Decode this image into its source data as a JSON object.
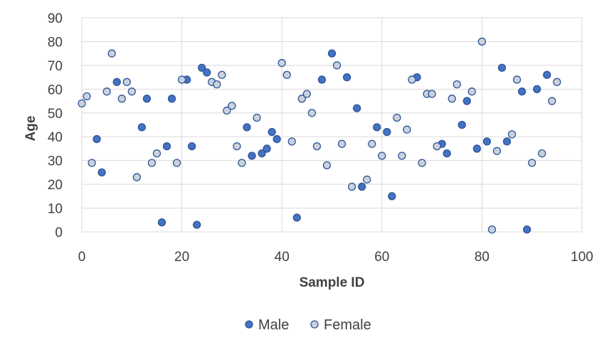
{
  "chart_data": {
    "type": "scatter",
    "title": "",
    "xlabel": "Sample ID",
    "ylabel": "Age",
    "xlim": [
      0,
      100
    ],
    "ylim": [
      0,
      90
    ],
    "x_ticks": [
      "0",
      "20",
      "40",
      "60",
      "80",
      "100"
    ],
    "y_ticks": [
      "0",
      "10",
      "20",
      "30",
      "40",
      "50",
      "60",
      "70",
      "80",
      "90"
    ],
    "grid": true,
    "legend_position": "bottom",
    "colors": {
      "male_fill": "#4472C4",
      "male_stroke": "#2F5597",
      "female_fill": "#C9D2DE",
      "female_stroke": "#2F5597",
      "gridline": "#D9D9D9",
      "text": "#404040"
    },
    "series": [
      {
        "name": "Male",
        "points": [
          [
            3,
            39
          ],
          [
            4,
            25
          ],
          [
            7,
            63
          ],
          [
            12,
            44
          ],
          [
            13,
            56
          ],
          [
            16,
            4
          ],
          [
            17,
            36
          ],
          [
            18,
            56
          ],
          [
            21,
            64
          ],
          [
            22,
            36
          ],
          [
            23,
            3
          ],
          [
            24,
            69
          ],
          [
            25,
            67
          ],
          [
            33,
            44
          ],
          [
            34,
            32
          ],
          [
            36,
            33
          ],
          [
            37,
            35
          ],
          [
            38,
            42
          ],
          [
            39,
            39
          ],
          [
            43,
            6
          ],
          [
            48,
            64
          ],
          [
            50,
            75
          ],
          [
            53,
            65
          ],
          [
            55,
            52
          ],
          [
            56,
            19
          ],
          [
            59,
            44
          ],
          [
            61,
            42
          ],
          [
            62,
            15
          ],
          [
            67,
            65
          ],
          [
            72,
            37
          ],
          [
            73,
            33
          ],
          [
            76,
            45
          ],
          [
            77,
            55
          ],
          [
            79,
            35
          ],
          [
            81,
            38
          ],
          [
            84,
            69
          ],
          [
            85,
            38
          ],
          [
            88,
            59
          ],
          [
            89,
            1
          ],
          [
            91,
            60
          ],
          [
            93,
            66
          ]
        ]
      },
      {
        "name": "Female",
        "points": [
          [
            0,
            54
          ],
          [
            1,
            57
          ],
          [
            2,
            29
          ],
          [
            5,
            59
          ],
          [
            6,
            75
          ],
          [
            8,
            56
          ],
          [
            9,
            63
          ],
          [
            10,
            59
          ],
          [
            11,
            23
          ],
          [
            14,
            29
          ],
          [
            15,
            33
          ],
          [
            19,
            29
          ],
          [
            20,
            64
          ],
          [
            26,
            63
          ],
          [
            27,
            62
          ],
          [
            28,
            66
          ],
          [
            29,
            51
          ],
          [
            30,
            53
          ],
          [
            31,
            36
          ],
          [
            32,
            29
          ],
          [
            35,
            48
          ],
          [
            40,
            71
          ],
          [
            41,
            66
          ],
          [
            42,
            38
          ],
          [
            44,
            56
          ],
          [
            45,
            58
          ],
          [
            46,
            50
          ],
          [
            47,
            36
          ],
          [
            49,
            28
          ],
          [
            51,
            70
          ],
          [
            52,
            37
          ],
          [
            54,
            19
          ],
          [
            57,
            22
          ],
          [
            58,
            37
          ],
          [
            60,
            32
          ],
          [
            63,
            48
          ],
          [
            64,
            32
          ],
          [
            65,
            43
          ],
          [
            66,
            64
          ],
          [
            68,
            29
          ],
          [
            69,
            58
          ],
          [
            70,
            58
          ],
          [
            71,
            36
          ],
          [
            74,
            56
          ],
          [
            75,
            62
          ],
          [
            78,
            59
          ],
          [
            80,
            80
          ],
          [
            82,
            1
          ],
          [
            83,
            34
          ],
          [
            86,
            41
          ],
          [
            87,
            64
          ],
          [
            90,
            29
          ],
          [
            92,
            33
          ],
          [
            94,
            55
          ],
          [
            95,
            63
          ]
        ]
      }
    ]
  }
}
